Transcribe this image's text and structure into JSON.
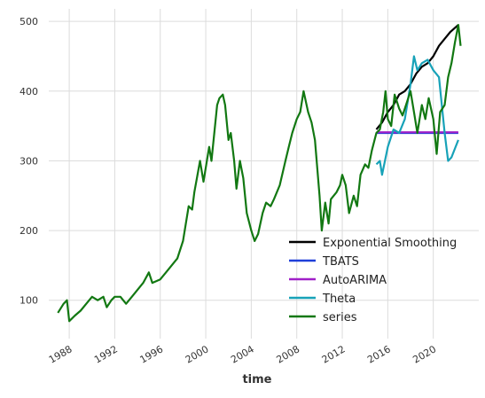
{
  "chart_data": {
    "type": "line",
    "xlabel": "time",
    "xlim": [
      1986.2,
      2024
    ],
    "ylim": [
      45,
      518
    ],
    "xticks": [
      1988,
      1992,
      1996,
      2000,
      2004,
      2008,
      2012,
      2016,
      2020
    ],
    "yticks": [
      100,
      200,
      300,
      400,
      500
    ],
    "grid": true,
    "legend": "lower right",
    "series": [
      {
        "name": "Exponential Smoothing",
        "color": "#000000",
        "x": [
          2015.0,
          2015.5,
          2016.0,
          2016.5,
          2017.0,
          2017.5,
          2018.0,
          2018.5,
          2019.0,
          2019.5,
          2020.0,
          2020.5,
          2021.0,
          2021.5,
          2022.2
        ],
        "values": [
          345,
          355,
          370,
          380,
          395,
          400,
          410,
          425,
          435,
          440,
          450,
          465,
          475,
          485,
          495
        ]
      },
      {
        "name": "TBATS",
        "color": "#1f3fd9",
        "x": [
          2015.0,
          2022.2
        ],
        "values": [
          340,
          340
        ]
      },
      {
        "name": "AutoARIMA",
        "color": "#a020c8",
        "x": [
          2015.0,
          2022.2
        ],
        "values": [
          341,
          341
        ]
      },
      {
        "name": "Theta",
        "color": "#17a2b8",
        "x": [
          2015.0,
          2015.3,
          2015.5,
          2016.0,
          2016.5,
          2017.0,
          2017.5,
          2018.0,
          2018.3,
          2018.6,
          2019.0,
          2019.5,
          2020.0,
          2020.5,
          2021.0,
          2021.3,
          2021.6,
          2022.2
        ],
        "values": [
          295,
          300,
          280,
          320,
          345,
          340,
          360,
          410,
          450,
          430,
          440,
          445,
          430,
          420,
          340,
          300,
          305,
          330
        ]
      },
      {
        "name": "series",
        "color": "#127812",
        "x": [
          1987.0,
          1987.5,
          1987.8,
          1988.0,
          1988.5,
          1989.0,
          1989.5,
          1990.0,
          1990.5,
          1991.0,
          1991.3,
          1991.7,
          1992.0,
          1992.5,
          1993.0,
          1993.5,
          1994.0,
          1994.5,
          1995.0,
          1995.3,
          1996.0,
          1996.5,
          1997.0,
          1997.5,
          1998.0,
          1998.5,
          1998.8,
          1999.0,
          1999.5,
          1999.8,
          2000.3,
          2000.5,
          2001.0,
          2001.2,
          2001.5,
          2001.7,
          2002.0,
          2002.2,
          2002.5,
          2002.7,
          2003.0,
          2003.3,
          2003.6,
          2004.0,
          2004.3,
          2004.6,
          2005.0,
          2005.3,
          2005.7,
          2006.0,
          2006.5,
          2007.0,
          2007.3,
          2007.6,
          2008.0,
          2008.3,
          2008.6,
          2009.0,
          2009.3,
          2009.6,
          2010.0,
          2010.2,
          2010.5,
          2010.8,
          2011.0,
          2011.5,
          2011.8,
          2012.0,
          2012.3,
          2012.6,
          2013.0,
          2013.3,
          2013.6,
          2014.0,
          2014.3,
          2014.6,
          2015.0,
          2015.3,
          2015.6,
          2015.8,
          2016.0,
          2016.3,
          2016.6,
          2017.0,
          2017.3,
          2017.6,
          2018.0,
          2018.3,
          2018.6,
          2019.0,
          2019.3,
          2019.6,
          2020.0,
          2020.3,
          2020.6,
          2021.0,
          2021.3,
          2021.6,
          2021.9,
          2022.2,
          2022.4
        ],
        "values": [
          82,
          95,
          100,
          70,
          78,
          85,
          95,
          105,
          100,
          105,
          90,
          100,
          105,
          105,
          95,
          105,
          115,
          125,
          140,
          125,
          130,
          140,
          150,
          160,
          185,
          235,
          230,
          255,
          300,
          270,
          320,
          300,
          380,
          390,
          395,
          380,
          330,
          340,
          300,
          260,
          300,
          275,
          225,
          200,
          185,
          195,
          225,
          240,
          235,
          245,
          265,
          300,
          320,
          340,
          360,
          370,
          400,
          370,
          355,
          330,
          250,
          200,
          240,
          210,
          245,
          255,
          265,
          280,
          265,
          225,
          250,
          235,
          280,
          295,
          290,
          315,
          340,
          345,
          370,
          400,
          360,
          350,
          395,
          375,
          365,
          380,
          400,
          370,
          340,
          380,
          360,
          390,
          360,
          310,
          370,
          380,
          420,
          440,
          470,
          495,
          465
        ]
      }
    ]
  }
}
